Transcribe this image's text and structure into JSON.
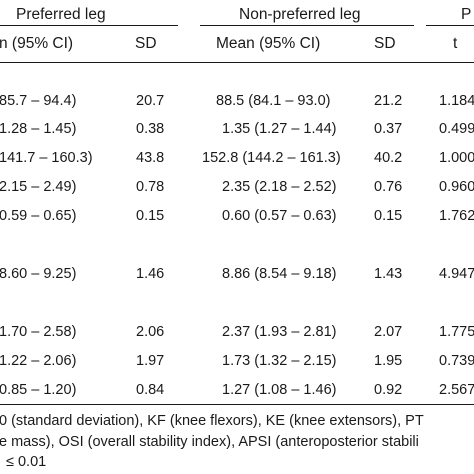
{
  "table": {
    "group_headers": {
      "preferred_leg": "Preferred leg",
      "non_preferred_leg": "Non-preferred leg",
      "p_fragment": "P"
    },
    "column_headers": {
      "pref_mean_fragment": "n (95% CI)",
      "pref_sd": "SD",
      "nonpref_mean": "Mean (95% CI)",
      "nonpref_sd": "SD",
      "t": "t"
    },
    "rows": [
      {
        "pref_ci": "85.7 – 94.4)",
        "pref_sd": "20.7",
        "nonpref_mean": "88.5 (84.1 – 93.0)",
        "nonpref_sd": "21.2",
        "t": "1.184"
      },
      {
        "pref_ci": "1.28 – 1.45)",
        "pref_sd": "0.38",
        "nonpref_mean": "1.35 (1.27 – 1.44)",
        "nonpref_sd": "0.37",
        "t": "0.499"
      },
      {
        "pref_ci": "141.7 – 160.3)",
        "pref_sd": "43.8",
        "nonpref_mean": "152.8 (144.2 – 161.3)",
        "nonpref_sd": "40.2",
        "t": "1.000"
      },
      {
        "pref_ci": "2.15 – 2.49)",
        "pref_sd": "0.78",
        "nonpref_mean": "2.35 (2.18 – 2.52)",
        "nonpref_sd": "0.76",
        "t": "0.960"
      },
      {
        "pref_ci": "0.59 – 0.65)",
        "pref_sd": "0.15",
        "nonpref_mean": "0.60 (0.57 – 0.63)",
        "nonpref_sd": "0.15",
        "t": "1.762"
      },
      {
        "pref_ci": "8.60 – 9.25)",
        "pref_sd": "1.46",
        "nonpref_mean": "8.86 (8.54 – 9.18)",
        "nonpref_sd": "1.43",
        "t": "4.947"
      },
      {
        "pref_ci": "1.70 – 2.58)",
        "pref_sd": "2.06",
        "nonpref_mean": "2.37 (1.93 – 2.81)",
        "nonpref_sd": "2.07",
        "t": "1.775"
      },
      {
        "pref_ci": "1.22 – 2.06)",
        "pref_sd": "1.97",
        "nonpref_mean": "1.73 (1.32 – 2.15)",
        "nonpref_sd": "1.95",
        "t": "0.739"
      },
      {
        "pref_ci": "0.85 – 1.20)",
        "pref_sd": "0.84",
        "nonpref_mean": "1.27 (1.08 – 1.46)",
        "nonpref_sd": "0.92",
        "t": "2.567"
      }
    ]
  },
  "footnotes": [
    "0 (standard deviation), KF (knee flexors), KE (knee extensors), PT",
    "e mass), OSI (overall stability index), APSI (anteroposterior stabili",
    "≤ 0.01"
  ]
}
